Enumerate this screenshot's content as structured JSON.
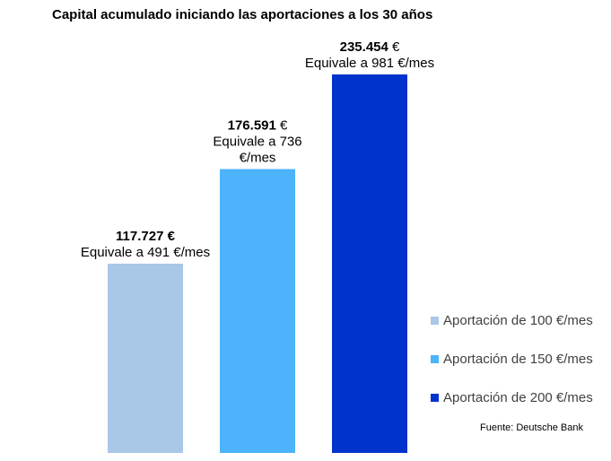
{
  "chart_data": {
    "type": "bar",
    "title": "Capital acumulado iniciando las aportaciones a los 30 años",
    "categories": [
      "Aportación de 100 €/mes",
      "Aportación de 150 €/mes",
      "Aportación de 200 €/mes"
    ],
    "values": [
      117727,
      176591,
      235454
    ],
    "value_labels": [
      "117.727 €",
      "176.591 €",
      "235.454 €"
    ],
    "value_label_numbers": [
      "117.727",
      "176.591",
      "235.454"
    ],
    "value_label_units": [
      "€",
      "€",
      "€"
    ],
    "value_sublabels": [
      [
        "Equivale a 491 €/mes"
      ],
      [
        "Equivale a 736",
        "€/mes"
      ],
      [
        "Equivale a 981 €/mes"
      ]
    ],
    "colors": [
      "#a9c8e7",
      "#4db3fa",
      "#0033cc"
    ],
    "ylim": [
      0,
      235454
    ],
    "grid": false,
    "legend_position": "right",
    "xlabel": "",
    "ylabel": "",
    "source": "Fuente: Deutsche Bank"
  }
}
